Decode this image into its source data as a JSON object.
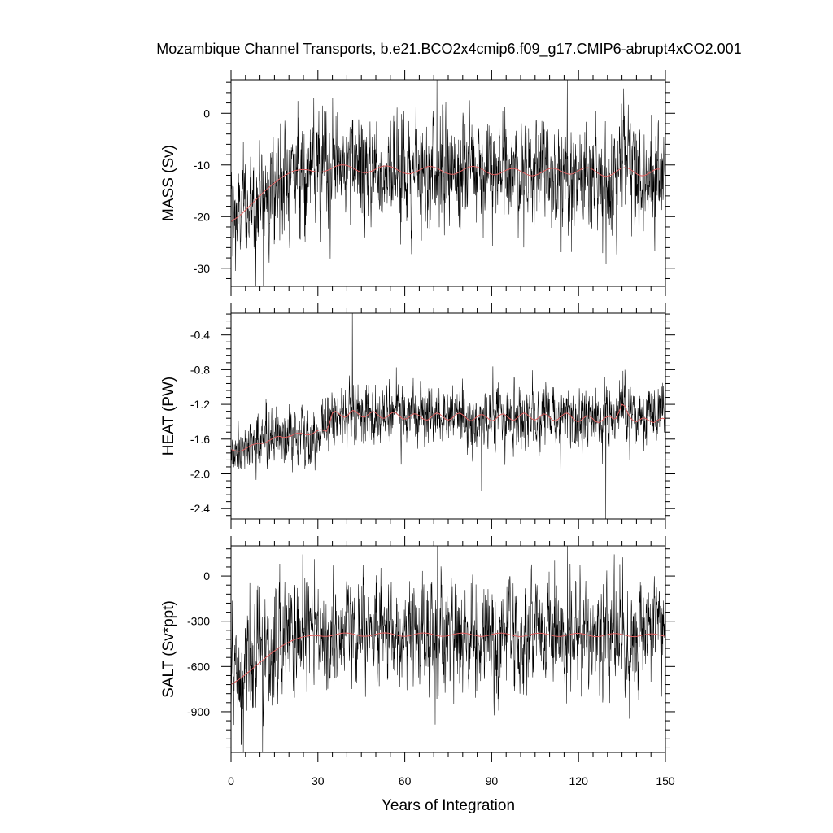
{
  "chart_data": {
    "type": "line",
    "title": "Mozambique Channel Transports, b.e21.BCO2x4cmip6.f09_g17.CMIP6-abrupt4xCO2.001",
    "xlabel": "Years of Integration",
    "xlim": [
      0,
      150
    ],
    "xticks": [
      0,
      30,
      60,
      90,
      120,
      150
    ],
    "xtick_labels": [
      "0",
      "30",
      "60",
      "90",
      "120",
      "150"
    ],
    "legend": "none",
    "panels": [
      {
        "id": "mass",
        "ylabel": "MASS (Sv)",
        "ylim": [
          -33.5,
          6.5
        ],
        "yticks": [
          0,
          -10,
          -20,
          -30
        ],
        "ytick_labels": [
          "0",
          "-10",
          "-20",
          "-30"
        ],
        "series": [
          {
            "name": "monthly",
            "color": "#000000",
            "start_mean": -21,
            "end_mean": -11.5,
            "noise_sd": 5.2,
            "low_ext": -33.5,
            "high_ext": 6.5
          },
          {
            "name": "annual mean",
            "color": "#e06060",
            "values": [
              -21.0,
              -20.6,
              -20.2,
              -19.8,
              -19.3,
              -18.7,
              -18.2,
              -17.6,
              -17.1,
              -16.5,
              -16.0,
              -15.4,
              -14.9,
              -14.4,
              -13.9,
              -13.5,
              -13.0,
              -12.6,
              -12.2,
              -11.9,
              -11.6,
              -11.3,
              -11.1,
              -11.0,
              -10.9,
              -10.9,
              -10.9,
              -11.0,
              -11.2,
              -11.3,
              -11.4,
              -11.4,
              -11.3,
              -11.1,
              -10.9,
              -10.6,
              -10.3,
              -10.1,
              -10.0,
              -10.0,
              -10.1,
              -10.3,
              -10.6,
              -10.9,
              -11.2,
              -11.4,
              -11.5,
              -11.5,
              -11.3,
              -11.1,
              -10.8,
              -10.5,
              -10.3,
              -10.2,
              -10.2,
              -10.3,
              -10.5,
              -10.8,
              -11.1,
              -11.4,
              -11.6,
              -11.7,
              -11.7,
              -11.5,
              -11.3,
              -11.0,
              -10.7,
              -10.5,
              -10.3,
              -10.3,
              -10.4,
              -10.6,
              -10.9,
              -11.2,
              -11.5,
              -11.7,
              -11.8,
              -11.8,
              -11.6,
              -11.3,
              -11.0,
              -10.7,
              -10.4,
              -10.3,
              -10.3,
              -10.4,
              -10.6,
              -10.9,
              -11.3,
              -11.6,
              -11.8,
              -11.9,
              -11.8,
              -11.6,
              -11.3,
              -11.0,
              -10.8,
              -10.7,
              -10.7,
              -10.9,
              -11.2,
              -11.5,
              -11.8,
              -12.0,
              -12.1,
              -12.0,
              -11.8,
              -11.5,
              -11.2,
              -10.9,
              -10.7,
              -10.6,
              -10.7,
              -10.9,
              -11.2,
              -11.5,
              -11.7,
              -11.8,
              -11.7,
              -11.4,
              -11.1,
              -10.8,
              -10.6,
              -10.5,
              -10.6,
              -10.9,
              -11.3,
              -11.7,
              -12.0,
              -12.2,
              -12.2,
              -12.0,
              -11.7,
              -11.3,
              -10.9,
              -10.6,
              -10.5,
              -10.6,
              -10.9,
              -11.3,
              -11.7,
              -12.0,
              -12.1,
              -12.0,
              -11.7,
              -11.4,
              -11.0,
              -10.8,
              -10.8
            ]
          }
        ]
      },
      {
        "id": "heat",
        "ylabel": "HEAT (PW)",
        "ylim": [
          -2.52,
          -0.15
        ],
        "yticks": [
          -0.4,
          -0.8,
          -1.2,
          -1.6,
          -2.0,
          -2.4
        ],
        "ytick_labels": [
          "-0.4",
          "-0.8",
          "-1.2",
          "-1.6",
          "-2.0",
          "-2.4"
        ],
        "series": [
          {
            "name": "monthly",
            "color": "#000000",
            "start_mean": -1.72,
            "end_mean": -1.38,
            "noise_sd": 0.17,
            "low_ext": -2.52,
            "high_ext": -0.15
          },
          {
            "name": "annual mean",
            "color": "#e06060",
            "values": [
              -1.72,
              -1.73,
              -1.74,
              -1.74,
              -1.73,
              -1.71,
              -1.69,
              -1.67,
              -1.66,
              -1.65,
              -1.65,
              -1.65,
              -1.64,
              -1.62,
              -1.6,
              -1.58,
              -1.57,
              -1.57,
              -1.58,
              -1.58,
              -1.57,
              -1.56,
              -1.54,
              -1.53,
              -1.53,
              -1.54,
              -1.55,
              -1.55,
              -1.54,
              -1.52,
              -1.5,
              -1.49,
              -1.5,
              -1.51,
              -1.42,
              -1.3,
              -1.28,
              -1.3,
              -1.33,
              -1.35,
              -1.34,
              -1.3,
              -1.27,
              -1.28,
              -1.31,
              -1.34,
              -1.35,
              -1.33,
              -1.3,
              -1.28,
              -1.3,
              -1.33,
              -1.36,
              -1.36,
              -1.34,
              -1.31,
              -1.29,
              -1.3,
              -1.33,
              -1.36,
              -1.37,
              -1.36,
              -1.33,
              -1.31,
              -1.31,
              -1.33,
              -1.36,
              -1.38,
              -1.38,
              -1.35,
              -1.32,
              -1.3,
              -1.31,
              -1.34,
              -1.37,
              -1.38,
              -1.37,
              -1.34,
              -1.31,
              -1.3,
              -1.32,
              -1.35,
              -1.38,
              -1.39,
              -1.37,
              -1.34,
              -1.32,
              -1.32,
              -1.34,
              -1.37,
              -1.39,
              -1.38,
              -1.35,
              -1.32,
              -1.31,
              -1.33,
              -1.36,
              -1.38,
              -1.38,
              -1.35,
              -1.32,
              -1.3,
              -1.31,
              -1.34,
              -1.37,
              -1.38,
              -1.36,
              -1.33,
              -1.31,
              -1.32,
              -1.35,
              -1.38,
              -1.39,
              -1.37,
              -1.34,
              -1.31,
              -1.3,
              -1.32,
              -1.36,
              -1.39,
              -1.4,
              -1.38,
              -1.35,
              -1.33,
              -1.34,
              -1.37,
              -1.4,
              -1.41,
              -1.39,
              -1.36,
              -1.34,
              -1.34,
              -1.37,
              -1.36,
              -1.28,
              -1.2,
              -1.22,
              -1.3,
              -1.36,
              -1.39,
              -1.4,
              -1.38,
              -1.36,
              -1.36,
              -1.38,
              -1.4,
              -1.41,
              -1.39,
              -1.37,
              -1.36,
              -1.37
            ]
          }
        ]
      },
      {
        "id": "salt",
        "ylabel": "SALT (Sv*ppt)",
        "ylim": [
          -1170,
          200
        ],
        "yticks": [
          0,
          -300,
          -600,
          -900
        ],
        "ytick_labels": [
          "0",
          "-300",
          "-600",
          "-900"
        ],
        "series": [
          {
            "name": "monthly",
            "color": "#000000",
            "start_mean": -720,
            "end_mean": -400,
            "noise_sd": 185,
            "low_ext": -1170,
            "high_ext": 200
          },
          {
            "name": "annual mean",
            "color": "#e06060",
            "values": [
              -720,
              -708,
              -695,
              -682,
              -668,
              -652,
              -637,
              -621,
              -605,
              -589,
              -573,
              -557,
              -541,
              -526,
              -511,
              -497,
              -484,
              -471,
              -459,
              -448,
              -438,
              -429,
              -421,
              -414,
              -408,
              -403,
              -399,
              -396,
              -395,
              -395,
              -396,
              -398,
              -400,
              -400,
              -398,
              -394,
              -389,
              -384,
              -380,
              -378,
              -378,
              -380,
              -384,
              -389,
              -394,
              -398,
              -400,
              -399,
              -396,
              -391,
              -386,
              -381,
              -378,
              -377,
              -378,
              -381,
              -386,
              -391,
              -396,
              -399,
              -400,
              -398,
              -394,
              -389,
              -384,
              -380,
              -378,
              -378,
              -380,
              -384,
              -389,
              -394,
              -398,
              -400,
              -399,
              -396,
              -391,
              -386,
              -382,
              -379,
              -378,
              -380,
              -383,
              -388,
              -393,
              -397,
              -400,
              -400,
              -397,
              -393,
              -388,
              -383,
              -379,
              -378,
              -379,
              -382,
              -387,
              -392,
              -397,
              -400,
              -401,
              -399,
              -395,
              -390,
              -385,
              -381,
              -379,
              -379,
              -381,
              -385,
              -390,
              -395,
              -399,
              -401,
              -400,
              -397,
              -392,
              -387,
              -383,
              -380,
              -380,
              -382,
              -386,
              -391,
              -396,
              -400,
              -402,
              -401,
              -398,
              -393,
              -388,
              -384,
              -381,
              -381,
              -383,
              -387,
              -392,
              -397,
              -401,
              -402,
              -401,
              -397,
              -393,
              -388,
              -385,
              -383,
              -384,
              -387,
              -392,
              -396,
              -400
            ]
          }
        ]
      }
    ]
  }
}
